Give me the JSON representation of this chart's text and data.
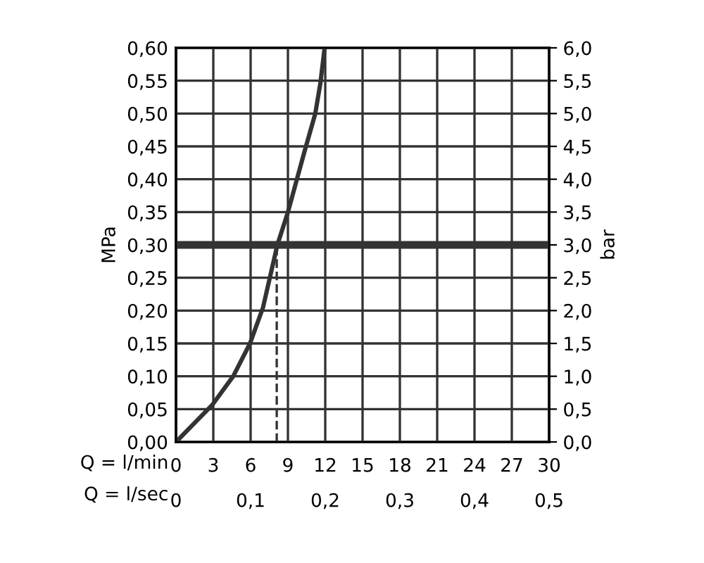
{
  "chart_data": {
    "type": "line",
    "xlabel": "Q = l/min",
    "x2label": "Q = l/sec",
    "ylabel": "MPa",
    "y2label": "bar",
    "x": [
      0,
      2.9,
      4.6,
      5.95,
      7.0,
      8.15,
      9.0,
      10.3,
      11.2,
      11.6,
      11.95
    ],
    "series": [
      {
        "color": "#333333",
        "values": [
          0,
          0.056,
          0.1,
          0.15,
          0.205,
          0.3,
          0.35,
          0.44,
          0.5,
          0.545,
          0.6
        ]
      }
    ],
    "xlim": [
      0,
      30
    ],
    "xticks": [
      0,
      3,
      6,
      9,
      12,
      15,
      18,
      21,
      24,
      27,
      30
    ],
    "x2lim": [
      0,
      0.5
    ],
    "x2ticks": [
      0,
      {
        "value": 0.1,
        "label": "0,1"
      },
      {
        "value": 0.2,
        "label": "0,2"
      },
      {
        "value": 0.3,
        "label": "0,3"
      },
      {
        "value": 0.4,
        "label": "0,4"
      },
      {
        "value": 0.5,
        "label": "0,5"
      }
    ],
    "ylim": [
      0,
      0.6
    ],
    "yticks": [
      {
        "value": 0,
        "label": "0,00"
      },
      {
        "value": 0.05,
        "label": "0,05"
      },
      {
        "value": 0.1,
        "label": "0,10"
      },
      {
        "value": 0.15,
        "label": "0,15"
      },
      {
        "value": 0.2,
        "label": "0,20"
      },
      {
        "value": 0.25,
        "label": "0,25"
      },
      {
        "value": 0.3,
        "label": "0,30"
      },
      {
        "value": 0.35,
        "label": "0,35"
      },
      {
        "value": 0.4,
        "label": "0,40"
      },
      {
        "value": 0.45,
        "label": "0,45"
      },
      {
        "value": 0.5,
        "label": "0,50"
      },
      {
        "value": 0.55,
        "label": "0,55"
      },
      {
        "value": 0.6,
        "label": "0,60"
      }
    ],
    "y2lim": [
      0,
      6
    ],
    "y2ticks": [
      {
        "value": 0,
        "label": "0,0"
      },
      {
        "value": 0.5,
        "label": "0,5"
      },
      {
        "value": 1,
        "label": "1,0"
      },
      {
        "value": 1.5,
        "label": "1,5"
      },
      {
        "value": 2,
        "label": "2,0"
      },
      {
        "value": 2.5,
        "label": "2,5"
      },
      {
        "value": 3,
        "label": "3,0"
      },
      {
        "value": 3.5,
        "label": "3,5"
      },
      {
        "value": 4,
        "label": "4,0"
      },
      {
        "value": 4.5,
        "label": "4,5"
      },
      {
        "value": 5,
        "label": "5,0"
      },
      {
        "value": 5.5,
        "label": "5,5"
      },
      {
        "value": 6,
        "label": "6,0"
      }
    ],
    "ref_lines": [
      {
        "axis": "y",
        "value": 0.3,
        "color": "#333333",
        "line_style": "solid"
      },
      {
        "axis": "x",
        "value": 8.1,
        "color": "#333333",
        "line_style": "dashed"
      }
    ],
    "grid": true,
    "line_style": "solid",
    "marker": "none"
  }
}
